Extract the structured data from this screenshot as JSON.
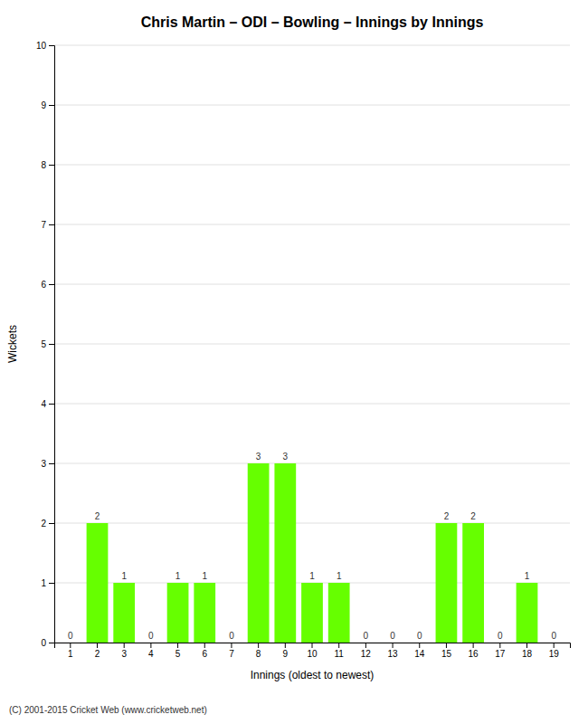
{
  "chart_data": {
    "type": "bar",
    "title": "Chris Martin – ODI – Bowling – Innings by Innings",
    "xlabel": "Innings (oldest to newest)",
    "ylabel": "Wickets",
    "footer": "(C) 2001-2015 Cricket Web (www.cricketweb.net)",
    "categories": [
      "1",
      "2",
      "3",
      "4",
      "5",
      "6",
      "7",
      "8",
      "9",
      "10",
      "11",
      "12",
      "13",
      "14",
      "15",
      "16",
      "17",
      "18",
      "19"
    ],
    "values": [
      0,
      2,
      1,
      0,
      1,
      1,
      0,
      3,
      3,
      1,
      1,
      0,
      0,
      0,
      2,
      2,
      0,
      1,
      0
    ],
    "color": "#66ff00",
    "ylim": [
      0,
      10
    ],
    "yticks": [
      0,
      1,
      2,
      3,
      4,
      5,
      6,
      7,
      8,
      9,
      10
    ],
    "grid": true,
    "data_labels": true
  }
}
